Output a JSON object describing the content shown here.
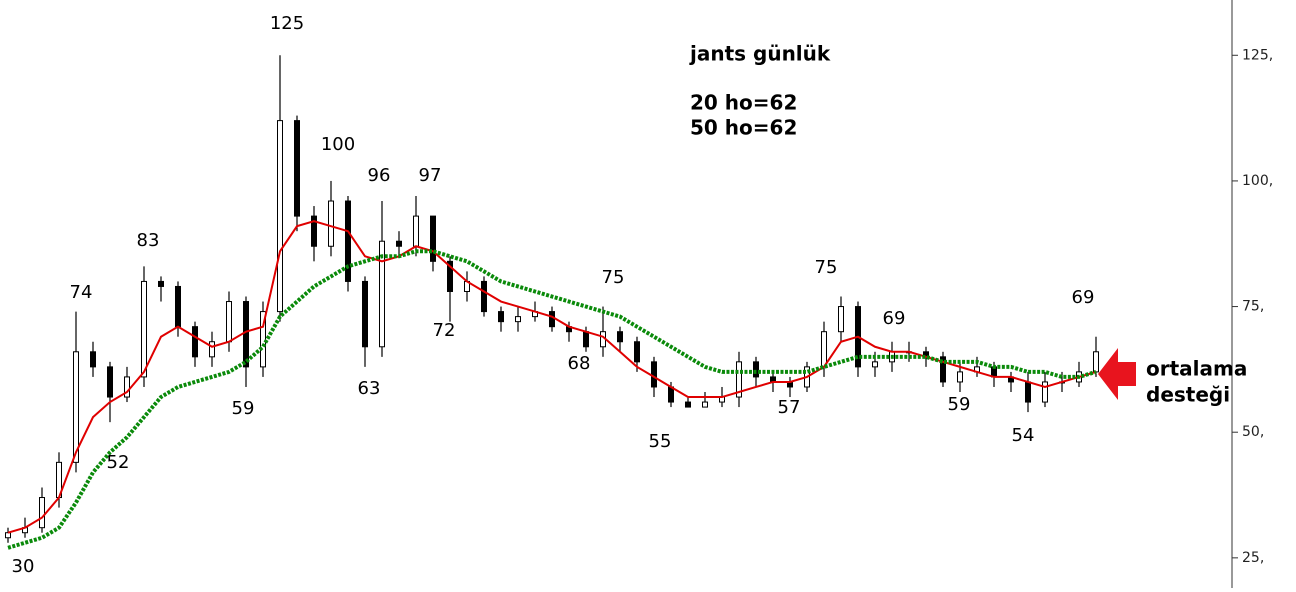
{
  "chart_data": {
    "type": "candlestick",
    "title": "jants günlük",
    "notes": [
      "20 ho=62",
      "50 ho=62"
    ],
    "callout": [
      "ortalama",
      "desteği"
    ],
    "callout_color": "#e8141e",
    "open": [
      29,
      30,
      31,
      37,
      44,
      66,
      63,
      57,
      61,
      80,
      79,
      71,
      65,
      68,
      76,
      63,
      74,
      112,
      93,
      87,
      96,
      80,
      67,
      88,
      87,
      93,
      84,
      78,
      80,
      74,
      72,
      73,
      74,
      71,
      70,
      67,
      70,
      68,
      64,
      59,
      56,
      55,
      56,
      57,
      64,
      61,
      60,
      59,
      63,
      70,
      75,
      63,
      64,
      66,
      66,
      65,
      60,
      62,
      63,
      61,
      60,
      56,
      60,
      60,
      62
    ],
    "high": [
      31,
      33,
      39,
      46,
      74,
      68,
      64,
      63,
      83,
      81,
      80,
      72,
      70,
      78,
      77,
      76,
      125,
      113,
      95,
      100,
      97,
      81,
      96,
      90,
      97,
      93,
      85,
      82,
      81,
      75,
      75,
      76,
      75,
      72,
      71,
      75,
      71,
      69,
      65,
      60,
      57,
      58,
      59,
      66,
      65,
      62,
      61,
      64,
      72,
      77,
      76,
      66,
      68,
      68,
      67,
      66,
      64,
      65,
      64,
      62,
      62,
      62,
      62,
      64,
      69
    ],
    "low": [
      28,
      29,
      30,
      35,
      42,
      61,
      52,
      56,
      59,
      76,
      69,
      63,
      63,
      66,
      59,
      61,
      72,
      90,
      84,
      85,
      78,
      63,
      65,
      85,
      85,
      82,
      72,
      76,
      73,
      70,
      70,
      72,
      70,
      68,
      66,
      65,
      66,
      62,
      57,
      55,
      55,
      55,
      55,
      55,
      59,
      58,
      57,
      58,
      61,
      68,
      61,
      61,
      62,
      64,
      63,
      59,
      58,
      61,
      59,
      58,
      54,
      55,
      58,
      59,
      61
    ],
    "close": [
      30,
      31,
      37,
      44,
      66,
      63,
      57,
      61,
      80,
      79,
      71,
      65,
      68,
      76,
      63,
      74,
      112,
      93,
      87,
      96,
      80,
      67,
      88,
      87,
      93,
      84,
      78,
      80,
      74,
      72,
      73,
      74,
      71,
      70,
      67,
      70,
      68,
      64,
      59,
      56,
      55,
      56,
      57,
      64,
      61,
      60,
      59,
      63,
      70,
      75,
      63,
      64,
      66,
      66,
      65,
      60,
      62,
      63,
      61,
      60,
      56,
      60,
      60,
      62,
      66
    ],
    "ma_lines": [
      {
        "color": "#e00000",
        "values": [
          30,
          31,
          33,
          37,
          46,
          53,
          56,
          58,
          62,
          69,
          71,
          69,
          67,
          68,
          70,
          71,
          86,
          91,
          92,
          91,
          90,
          85,
          84,
          85,
          87,
          86,
          83,
          80,
          78,
          76,
          75,
          74,
          73,
          71,
          70,
          69,
          66,
          63,
          61,
          59,
          57,
          57,
          57,
          58,
          59,
          60,
          60,
          61,
          63,
          68,
          69,
          67,
          66,
          66,
          65,
          64,
          63,
          62,
          61,
          61,
          60,
          59,
          60,
          61,
          62
        ]
      },
      {
        "color": "#0a8a0a",
        "values": [
          27,
          28,
          29,
          31,
          36,
          42,
          46,
          49,
          53,
          57,
          59,
          60,
          61,
          62,
          64,
          67,
          73,
          76,
          79,
          81,
          83,
          84,
          85,
          85,
          86,
          86,
          85,
          84,
          82,
          80,
          79,
          78,
          77,
          76,
          75,
          74,
          73,
          71,
          69,
          67,
          65,
          63,
          62,
          62,
          62,
          62,
          62,
          62,
          63,
          64,
          65,
          65,
          65,
          65,
          65,
          64,
          64,
          64,
          63,
          63,
          62,
          62,
          61,
          61,
          62
        ]
      }
    ],
    "annotations": [
      "125",
      "100",
      "96",
      "97",
      "83",
      "74",
      "52",
      "59",
      "63",
      "72",
      "75",
      "68",
      "55",
      "57",
      "75",
      "69",
      "59",
      "54",
      "69",
      "30"
    ],
    "ylim": [
      19,
      136
    ],
    "yticks": [
      {
        "value": 25,
        "label": "25,"
      },
      {
        "value": 50,
        "label": "50,"
      },
      {
        "value": 75,
        "label": "75,"
      },
      {
        "value": 100,
        "label": "100,"
      },
      {
        "value": 125,
        "label": "125,"
      }
    ]
  }
}
